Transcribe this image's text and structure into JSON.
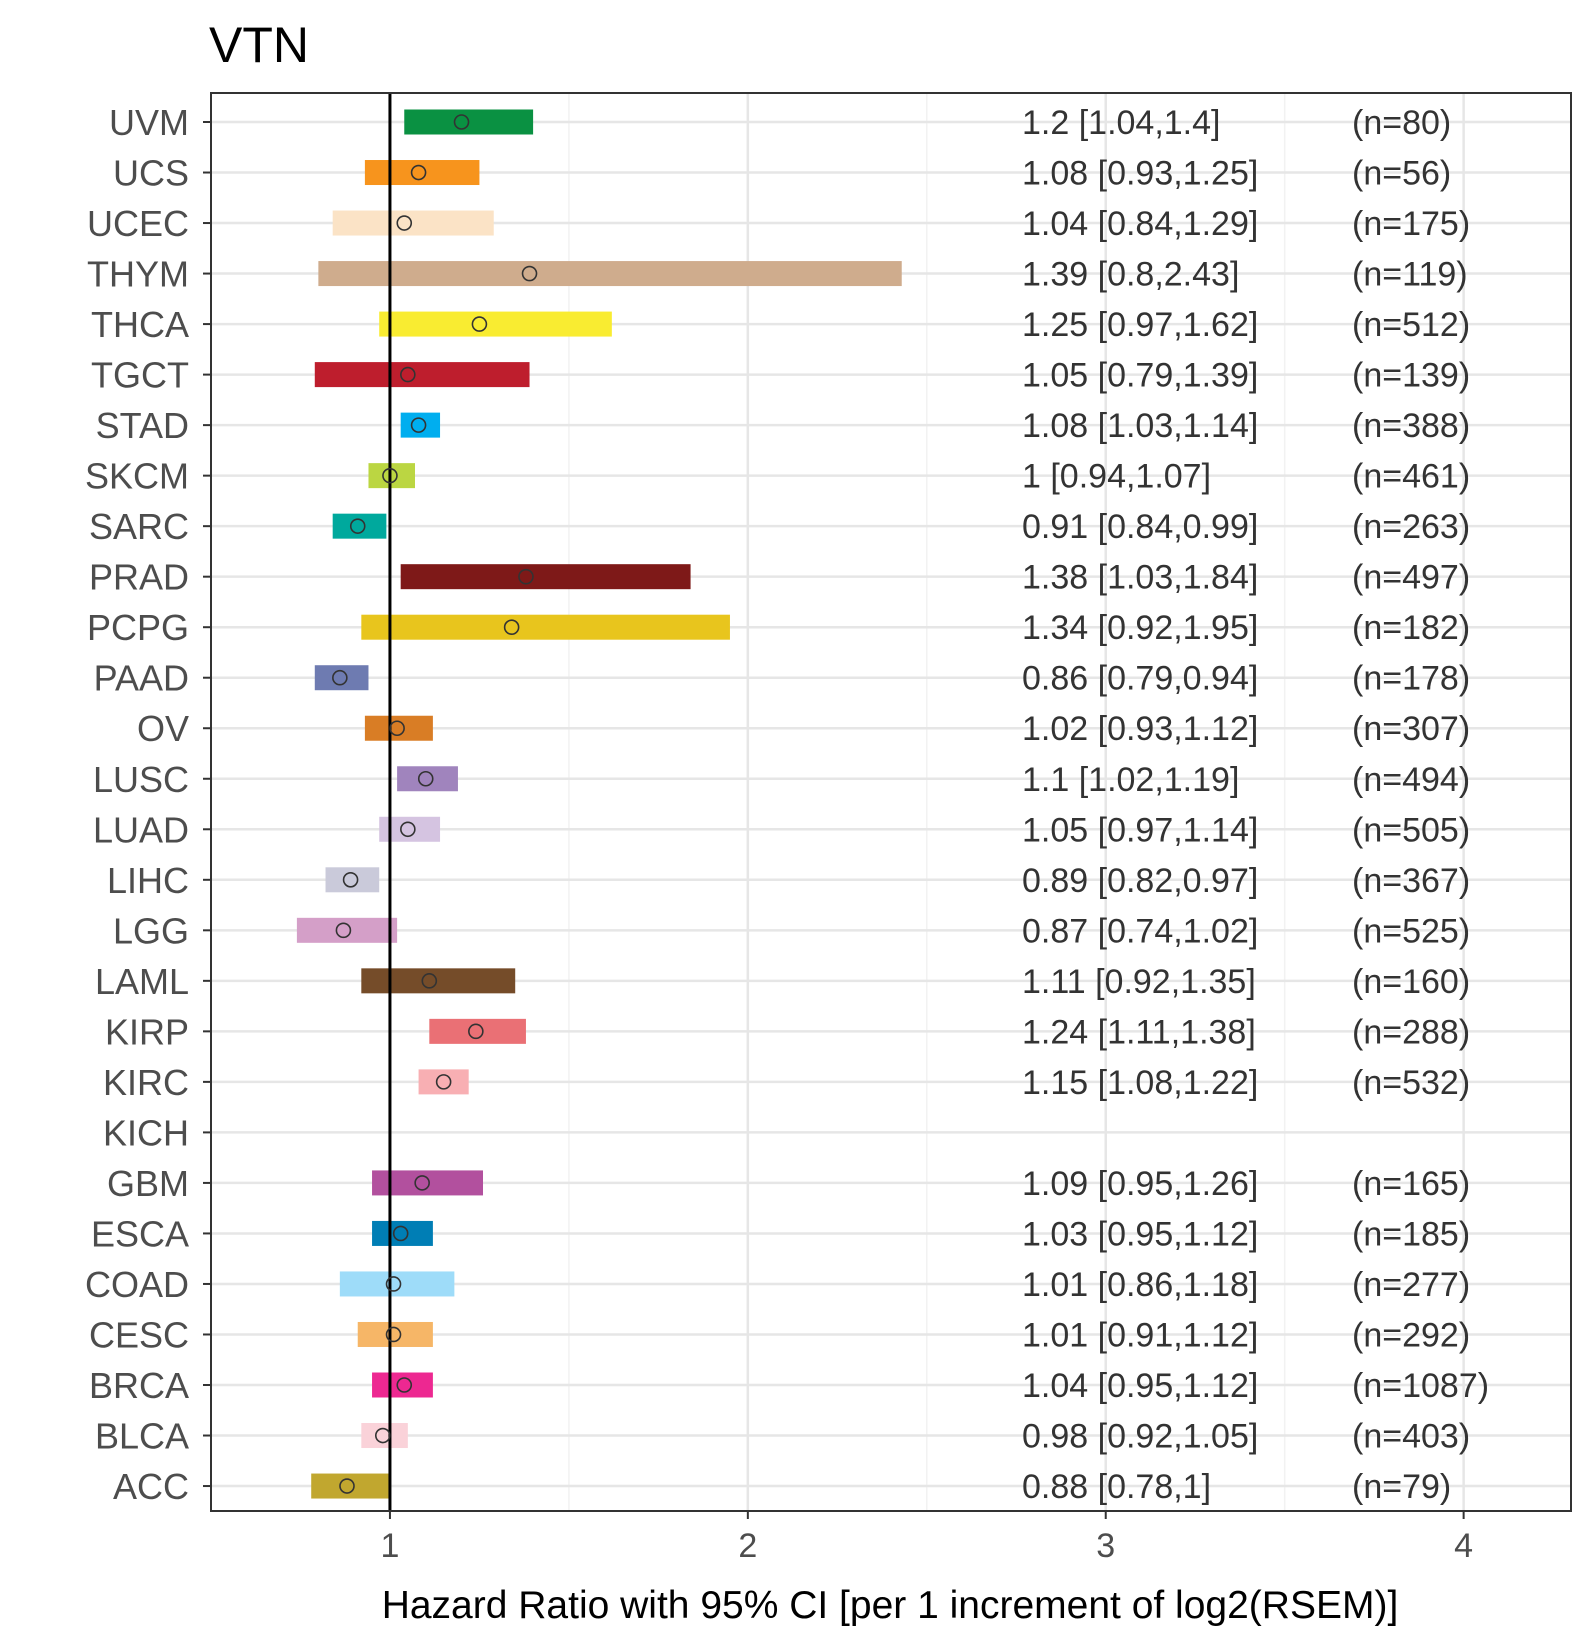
{
  "chart_data": {
    "type": "forest",
    "title": "VTN",
    "xlabel": "Hazard Ratio with 95% CI [per 1 increment of log2(RSEM)]",
    "ylabel": "",
    "xlim": [
      0.5,
      4.3
    ],
    "xticks": [
      1,
      2,
      3,
      4
    ],
    "xtick_labels": [
      "1",
      "2",
      "3",
      "4"
    ],
    "reference_line": 1,
    "grid": true,
    "rows": [
      {
        "label": "UVM",
        "hr": 1.2,
        "lo": 1.04,
        "hi": 1.4,
        "text": "1.2 [1.04,1.4]",
        "n": "(n=80)",
        "color": "#0a9142"
      },
      {
        "label": "UCS",
        "hr": 1.08,
        "lo": 0.93,
        "hi": 1.25,
        "text": "1.08 [0.93,1.25]",
        "n": "(n=56)",
        "color": "#f7941d"
      },
      {
        "label": "UCEC",
        "hr": 1.04,
        "lo": 0.84,
        "hi": 1.29,
        "text": "1.04 [0.84,1.29]",
        "n": "(n=175)",
        "color": "#fbe3c6"
      },
      {
        "label": "THYM",
        "hr": 1.39,
        "lo": 0.8,
        "hi": 2.43,
        "text": "1.39 [0.8,2.43]",
        "n": "(n=119)",
        "color": "#cfac8d"
      },
      {
        "label": "THCA",
        "hr": 1.25,
        "lo": 0.97,
        "hi": 1.62,
        "text": "1.25 [0.97,1.62]",
        "n": "(n=512)",
        "color": "#f9ec31"
      },
      {
        "label": "TGCT",
        "hr": 1.05,
        "lo": 0.79,
        "hi": 1.39,
        "text": "1.05 [0.79,1.39]",
        "n": "(n=139)",
        "color": "#be1e2d"
      },
      {
        "label": "STAD",
        "hr": 1.08,
        "lo": 1.03,
        "hi": 1.14,
        "text": "1.08 [1.03,1.14]",
        "n": "(n=388)",
        "color": "#00aeef"
      },
      {
        "label": "SKCM",
        "hr": 1,
        "lo": 0.94,
        "hi": 1.07,
        "text": "1 [0.94,1.07]",
        "n": "(n=461)",
        "color": "#bbd642"
      },
      {
        "label": "SARC",
        "hr": 0.91,
        "lo": 0.84,
        "hi": 0.99,
        "text": "0.91 [0.84,0.99]",
        "n": "(n=263)",
        "color": "#00a99d"
      },
      {
        "label": "PRAD",
        "hr": 1.38,
        "lo": 1.03,
        "hi": 1.84,
        "text": "1.38 [1.03,1.84]",
        "n": "(n=497)",
        "color": "#7e1918"
      },
      {
        "label": "PCPG",
        "hr": 1.34,
        "lo": 0.92,
        "hi": 1.95,
        "text": "1.34 [0.92,1.95]",
        "n": "(n=182)",
        "color": "#e8c51d"
      },
      {
        "label": "PAAD",
        "hr": 0.86,
        "lo": 0.79,
        "hi": 0.94,
        "text": "0.86 [0.79,0.94]",
        "n": "(n=178)",
        "color": "#6e7bb1"
      },
      {
        "label": "OV",
        "hr": 1.02,
        "lo": 0.93,
        "hi": 1.12,
        "text": "1.02 [0.93,1.12]",
        "n": "(n=307)",
        "color": "#d97d25"
      },
      {
        "label": "LUSC",
        "hr": 1.1,
        "lo": 1.02,
        "hi": 1.19,
        "text": "1.1 [1.02,1.19]",
        "n": "(n=494)",
        "color": "#a084bd"
      },
      {
        "label": "LUAD",
        "hr": 1.05,
        "lo": 0.97,
        "hi": 1.14,
        "text": "1.05 [0.97,1.14]",
        "n": "(n=505)",
        "color": "#d5c4e1"
      },
      {
        "label": "LIHC",
        "hr": 0.89,
        "lo": 0.82,
        "hi": 0.97,
        "text": "0.89 [0.82,0.97]",
        "n": "(n=367)",
        "color": "#cacada"
      },
      {
        "label": "LGG",
        "hr": 0.87,
        "lo": 0.74,
        "hi": 1.02,
        "text": "0.87 [0.74,1.02]",
        "n": "(n=525)",
        "color": "#d49fc8"
      },
      {
        "label": "LAML",
        "hr": 1.11,
        "lo": 0.92,
        "hi": 1.35,
        "text": "1.11 [0.92,1.35]",
        "n": "(n=160)",
        "color": "#754c29"
      },
      {
        "label": "KIRP",
        "hr": 1.24,
        "lo": 1.11,
        "hi": 1.38,
        "text": "1.24 [1.11,1.38]",
        "n": "(n=288)",
        "color": "#ea7075"
      },
      {
        "label": "KIRC",
        "hr": 1.15,
        "lo": 1.08,
        "hi": 1.22,
        "text": "1.15 [1.08,1.22]",
        "n": "(n=532)",
        "color": "#f8afb3"
      },
      {
        "label": "KICH",
        "hr": null,
        "lo": null,
        "hi": null,
        "text": "",
        "n": "",
        "color": "#ed2891"
      },
      {
        "label": "GBM",
        "hr": 1.09,
        "lo": 0.95,
        "hi": 1.26,
        "text": "1.09 [0.95,1.26]",
        "n": "(n=165)",
        "color": "#b2509e"
      },
      {
        "label": "ESCA",
        "hr": 1.03,
        "lo": 0.95,
        "hi": 1.12,
        "text": "1.03 [0.95,1.12]",
        "n": "(n=185)",
        "color": "#007eb5"
      },
      {
        "label": "COAD",
        "hr": 1.01,
        "lo": 0.86,
        "hi": 1.18,
        "text": "1.01 [0.86,1.18]",
        "n": "(n=277)",
        "color": "#9edcf9"
      },
      {
        "label": "CESC",
        "hr": 1.01,
        "lo": 0.91,
        "hi": 1.12,
        "text": "1.01 [0.91,1.12]",
        "n": "(n=292)",
        "color": "#f6b667"
      },
      {
        "label": "BRCA",
        "hr": 1.04,
        "lo": 0.95,
        "hi": 1.12,
        "text": "1.04 [0.95,1.12]",
        "n": "(n=1087)",
        "color": "#ed2891"
      },
      {
        "label": "BLCA",
        "hr": 0.98,
        "lo": 0.92,
        "hi": 1.05,
        "text": "0.98 [0.92,1.05]",
        "n": "(n=403)",
        "color": "#fad2d9"
      },
      {
        "label": "ACC",
        "hr": 0.88,
        "lo": 0.78,
        "hi": 1,
        "text": "0.88 [0.78,1]",
        "n": "(n=79)",
        "color": "#c1a72f"
      }
    ]
  }
}
